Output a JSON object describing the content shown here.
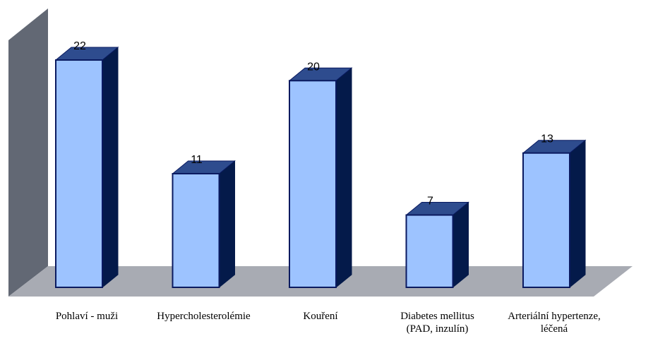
{
  "chart_data": {
    "type": "bar",
    "title": "",
    "xlabel": "",
    "ylabel": "",
    "categories": [
      [
        "Pohlaví - muži"
      ],
      [
        "Hypercholesterolémie"
      ],
      [
        "Kouření"
      ],
      [
        "Diabetes mellitus",
        "(PAD, inzulín)"
      ],
      [
        "Arteriální hypertenze,",
        "léčená"
      ]
    ],
    "values": [
      22,
      11,
      20,
      7,
      13
    ],
    "value_labels": [
      "22",
      "11",
      "20",
      "7",
      "13"
    ],
    "ylim": [
      0,
      22
    ],
    "grid": false,
    "legend": "none",
    "style": "3d-column",
    "colors": {
      "bar_front": "#9DC3FF",
      "bar_side": "#041A4A",
      "bar_top": "#2E4C8E",
      "bar_outline": "#0A1A60",
      "wall": "#626874",
      "floor": "#A8ABB3"
    }
  }
}
